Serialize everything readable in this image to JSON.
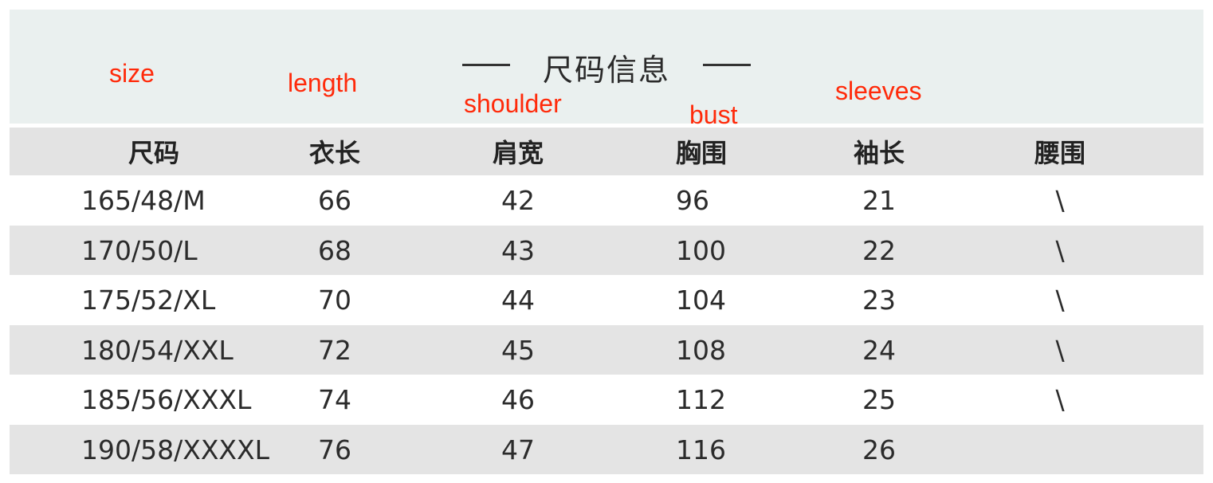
{
  "title": "尺码信息",
  "annotations": {
    "size": "size",
    "length": "length",
    "shoulder": "shoulder",
    "bust": "bust",
    "sleeves": "sleeves"
  },
  "annotation_color": "#ff2a0a",
  "headers": [
    "尺码",
    "衣长",
    "肩宽",
    "胸围",
    "袖长",
    "腰围"
  ],
  "rows": [
    [
      "165/48/M",
      "66",
      "42",
      "96",
      "21",
      "\\"
    ],
    [
      "170/50/L",
      "68",
      "43",
      "100",
      "22",
      "\\"
    ],
    [
      "175/52/XL",
      "70",
      "44",
      "104",
      "23",
      "\\"
    ],
    [
      "180/54/XXL",
      "72",
      "45",
      "108",
      "24",
      "\\"
    ],
    [
      "185/56/XXXL",
      "74",
      "46",
      "112",
      "25",
      "\\"
    ],
    [
      "190/58/XXXXL",
      "76",
      "47",
      "116",
      "26",
      ""
    ]
  ]
}
